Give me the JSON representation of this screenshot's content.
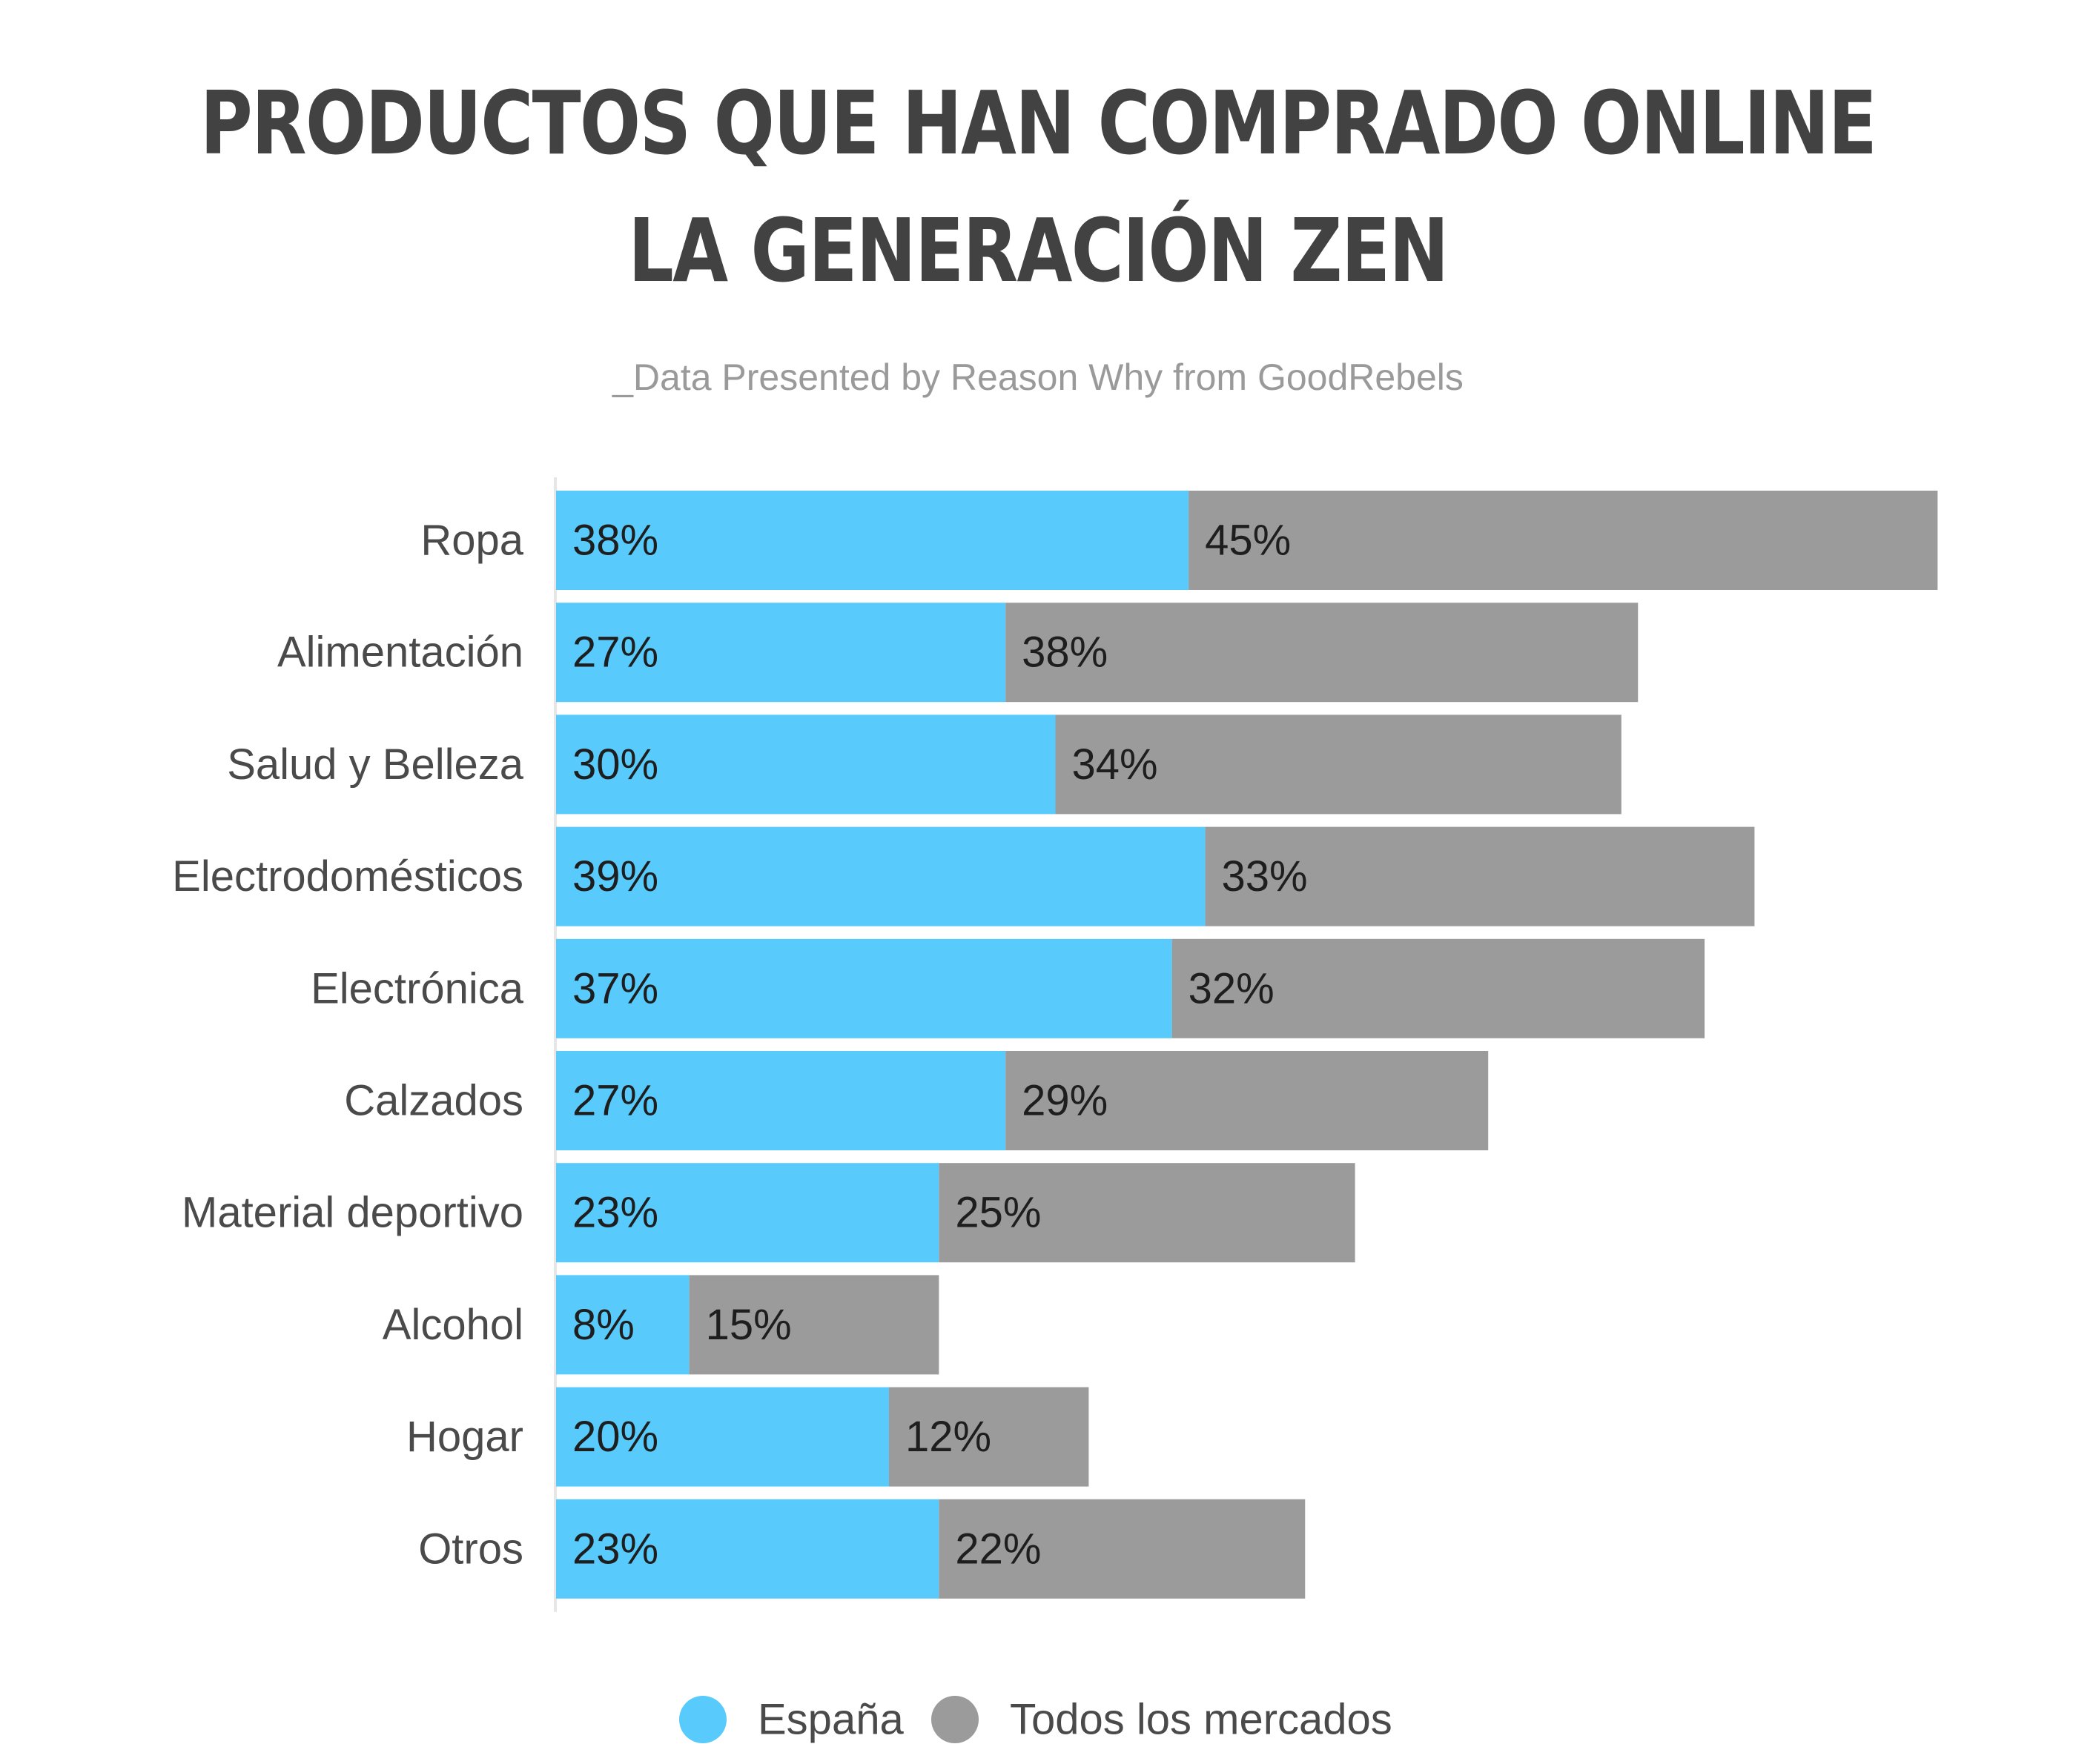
{
  "chart_data": {
    "type": "bar",
    "orientation": "horizontal",
    "stacked": true,
    "title_lines": [
      "PRODUCTOS QUE HAN COMPRADO ONLINE",
      "LA GENERACIÓN ZEN"
    ],
    "subtitle": "_Data Presented by Reason Why from  GoodRebels",
    "categories": [
      "Ropa",
      "Alimentación",
      "Salud y Belleza",
      "Electrodomésticos",
      "Electrónica",
      "Calzados",
      "Material deportivo",
      "Alcohol",
      "Hogar",
      "Otros"
    ],
    "series": [
      {
        "name": "España",
        "color": "#58CBFC",
        "values": [
          38,
          27,
          30,
          39,
          37,
          27,
          23,
          8,
          20,
          23
        ],
        "labels": [
          "38%",
          "27%",
          "30%",
          "39%",
          "37%",
          "27%",
          "23%",
          "8%",
          "20%",
          "23%"
        ]
      },
      {
        "name": "Todos los mercados",
        "color": "#9B9B9B",
        "values": [
          45,
          38,
          34,
          33,
          32,
          29,
          25,
          15,
          12,
          22
        ],
        "labels": [
          "45%",
          "38%",
          "34%",
          "33%",
          "32%",
          "29%",
          "25%",
          "15%",
          "12%",
          "22%"
        ]
      }
    ],
    "xlim": [
      0,
      83
    ],
    "grid": false,
    "legend_position": "bottom-center",
    "axis_color": "#e6e6e6"
  }
}
